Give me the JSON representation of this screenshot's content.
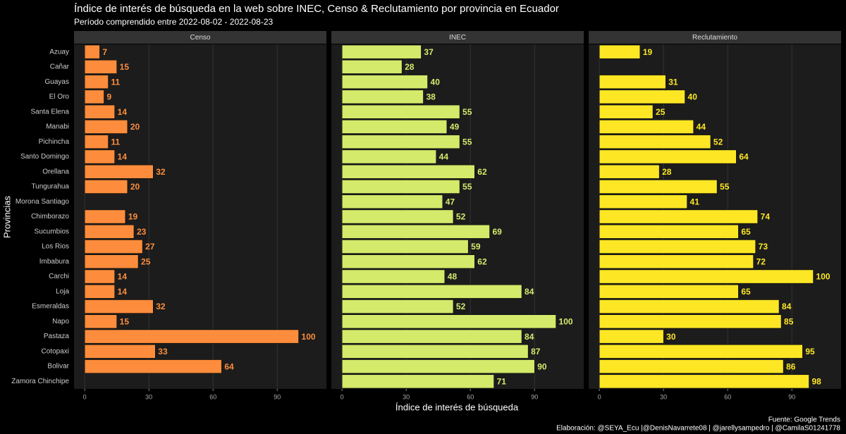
{
  "chart_data": {
    "type": "bar",
    "orientation": "horizontal",
    "title": "Índice de interés de búsqueda en la web sobre INEC, Censo & Reclutamiento por provincia en Ecuador",
    "subtitle": "Período comprendido entre 2022-08-02 - 2022-08-23",
    "xlabel": "Índice de interés de búsqueda",
    "ylabel": "Provincias",
    "caption": [
      "Fuente: Google Trends",
      "Elaboración:  @SEYA_Ecu |@DenisNavarrete08 | @jarellysampedro | @CamilaS01241778"
    ],
    "categories": [
      "Azuay",
      "Cañar",
      "Guayas",
      "El Oro",
      "Santa Elena",
      "Manabi",
      "Pichincha",
      "Santo Domingo",
      "Orellana",
      "Tungurahua",
      "Morona Santiago",
      "Chimborazo",
      "Sucumbios",
      "Los Rios",
      "Imbabura",
      "Carchi",
      "Loja",
      "Esmeraldas",
      "Napo",
      "Pastaza",
      "Cotopaxi",
      "Bolivar",
      "Zamora Chinchipe"
    ],
    "series": [
      {
        "name": "Censo",
        "color": "#fd8d3c",
        "values": [
          7,
          15,
          11,
          9,
          14,
          20,
          11,
          14,
          32,
          20,
          null,
          19,
          23,
          27,
          25,
          14,
          14,
          32,
          15,
          100,
          33,
          64,
          null
        ]
      },
      {
        "name": "INEC",
        "color": "#d4ea6b",
        "values": [
          37,
          28,
          40,
          38,
          55,
          49,
          55,
          44,
          62,
          55,
          47,
          52,
          69,
          59,
          62,
          48,
          84,
          52,
          100,
          84,
          87,
          90,
          71
        ]
      },
      {
        "name": "Reclutamiento",
        "color": "#fde725",
        "values": [
          19,
          null,
          31,
          40,
          25,
          44,
          52,
          64,
          28,
          55,
          41,
          74,
          65,
          73,
          72,
          100,
          65,
          84,
          85,
          30,
          95,
          86,
          98
        ]
      }
    ],
    "xlim": [
      -5,
      113
    ],
    "xticks": [
      0,
      30,
      60,
      90
    ],
    "grid": true
  }
}
